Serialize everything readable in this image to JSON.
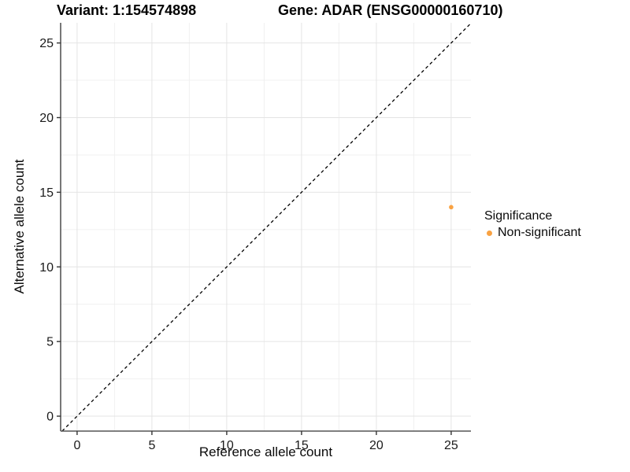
{
  "header": {
    "variant_title": "Variant: 1:154574898",
    "gene_title": "Gene: ADAR (ENSG00000160710)"
  },
  "chart_data": {
    "type": "scatter",
    "xlabel": "Reference allele count",
    "ylabel": "Alternative allele count",
    "xticks": [
      0,
      5,
      10,
      15,
      20,
      25
    ],
    "yticks": [
      0,
      5,
      10,
      15,
      20,
      25
    ],
    "minor_gridlines_x": [
      2.5,
      7.5,
      12.5,
      17.5,
      22.5
    ],
    "minor_gridlines_y": [
      2.5,
      7.5,
      12.5,
      17.5,
      22.5
    ],
    "xlim": [
      -1.1,
      26.32
    ],
    "ylim": [
      -1.0,
      26.35
    ],
    "grid": true,
    "legend_position": "right",
    "reference_line": {
      "slope": 1,
      "intercept": 0,
      "style": "dashed",
      "color": "#000000"
    },
    "series": [
      {
        "name": "Non-significant",
        "color": "#F9A242",
        "points": [
          {
            "x": 25,
            "y": 14
          }
        ]
      }
    ],
    "legend": {
      "title": "Significance",
      "items": [
        {
          "label": "Non-significant",
          "color": "#F9A242"
        }
      ]
    },
    "style_colors": {
      "axis_line": "#555555",
      "tick_mark": "#333333",
      "tick_label": "#1a1a1a",
      "grid_major": "#e4e4e4",
      "grid_minor": "#f0f0f0",
      "background": "#ffffff"
    }
  }
}
